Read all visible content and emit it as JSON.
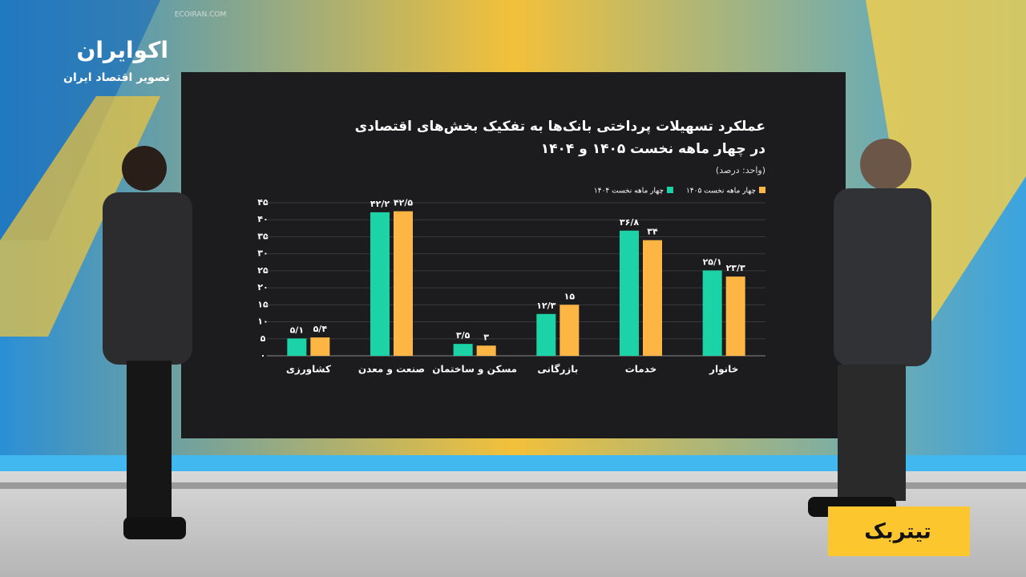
{
  "brand": {
    "name": "اکوایران",
    "tagline": "تصویر اقتصاد ایران",
    "site": "ECOIRAN.COM"
  },
  "badge": "تیتربک",
  "chart_data": {
    "type": "bar",
    "title": "عملکرد تسهیلات پرداختی بانک‌ها به تفکیک بخش‌های اقتصادی",
    "subtitle": "در چهار ماهه نخست ۱۴۰۵ و ۱۴۰۴",
    "unit": "(واحد: درصد)",
    "categories": [
      "کشاورزی",
      "صنعت و معدن",
      "مسکن و ساختمان",
      "بازرگانی",
      "خدمات",
      "خانوار"
    ],
    "series": [
      {
        "name": "چهار ماهه نخست ۱۴۰۴",
        "color": "#1bd3a6",
        "values": [
          5.1,
          42.2,
          3.5,
          12.3,
          36.8,
          25.1
        ],
        "value_labels": [
          "۵/۱",
          "۴۲/۲",
          "۳/۵",
          "۱۲/۳",
          "۳۶/۸",
          "۲۵/۱"
        ]
      },
      {
        "name": "چهار ماهه نخست ۱۴۰۵",
        "color": "#fdb544",
        "values": [
          5.4,
          42.5,
          3,
          15,
          34,
          23.3
        ],
        "value_labels": [
          "۵/۴",
          "۴۲/۵",
          "۳",
          "۱۵",
          "۳۴",
          "۲۳/۳"
        ]
      }
    ],
    "ylim": [
      0,
      45
    ],
    "yticks": [
      {
        "value": 0,
        "label": "۰"
      },
      {
        "value": 5,
        "label": "۵"
      },
      {
        "value": 10,
        "label": "۱۰"
      },
      {
        "value": 15,
        "label": "۱۵"
      },
      {
        "value": 20,
        "label": "۲۰"
      },
      {
        "value": 25,
        "label": "۲۵"
      },
      {
        "value": 30,
        "label": "۳۰"
      },
      {
        "value": 35,
        "label": "۳۵"
      },
      {
        "value": 40,
        "label": "۴۰"
      },
      {
        "value": 45,
        "label": "۴۵"
      }
    ],
    "grid": true,
    "legend": "top-right"
  }
}
